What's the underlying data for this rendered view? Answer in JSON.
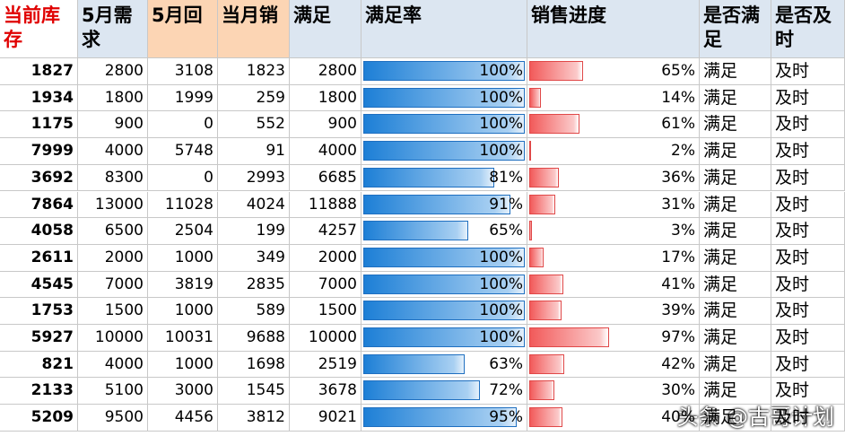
{
  "table": {
    "header": [
      "当前库存",
      "5月需求",
      "5月回",
      "当月销",
      "满足",
      "满足率",
      "销售进度",
      "是否满足",
      "是否及时"
    ],
    "rows": [
      [
        "1827",
        "2800",
        "3108",
        "1823",
        "2800",
        "100%",
        "65%",
        "满足",
        "及时"
      ],
      [
        "1934",
        "1800",
        "1999",
        "259",
        "1800",
        "100%",
        "14%",
        "满足",
        "及时"
      ],
      [
        "1175",
        "900",
        "0",
        "552",
        "900",
        "100%",
        "61%",
        "满足",
        "及时"
      ],
      [
        "7999",
        "4000",
        "5748",
        "91",
        "4000",
        "100%",
        "2%",
        "满足",
        "及时"
      ],
      [
        "3692",
        "8300",
        "0",
        "2993",
        "6685",
        "81%",
        "36%",
        "满足",
        "及时"
      ],
      [
        "7864",
        "13000",
        "11028",
        "4024",
        "11888",
        "91%",
        "31%",
        "满足",
        "及时"
      ],
      [
        "4058",
        "6500",
        "2504",
        "199",
        "4257",
        "65%",
        "3%",
        "满足",
        "及时"
      ],
      [
        "2611",
        "2000",
        "1000",
        "349",
        "2000",
        "100%",
        "17%",
        "满足",
        "及时"
      ],
      [
        "4545",
        "7000",
        "3819",
        "2835",
        "7000",
        "100%",
        "41%",
        "满足",
        "及时"
      ],
      [
        "1753",
        "1500",
        "1000",
        "589",
        "1500",
        "100%",
        "39%",
        "满足",
        "及时"
      ],
      [
        "5927",
        "10000",
        "10031",
        "9688",
        "10000",
        "100%",
        "97%",
        "满足",
        "及时"
      ],
      [
        "821",
        "4000",
        "1000",
        "1698",
        "2519",
        "63%",
        "42%",
        "满足",
        "及时"
      ],
      [
        "2133",
        "5100",
        "3000",
        "1545",
        "3678",
        "72%",
        "30%",
        "满足",
        "及时"
      ],
      [
        "5209",
        "9500",
        "4456",
        "3812",
        "9021",
        "95%",
        "40%",
        "满足",
        "及时"
      ]
    ]
  },
  "watermark": "头条 @古哥计划"
}
